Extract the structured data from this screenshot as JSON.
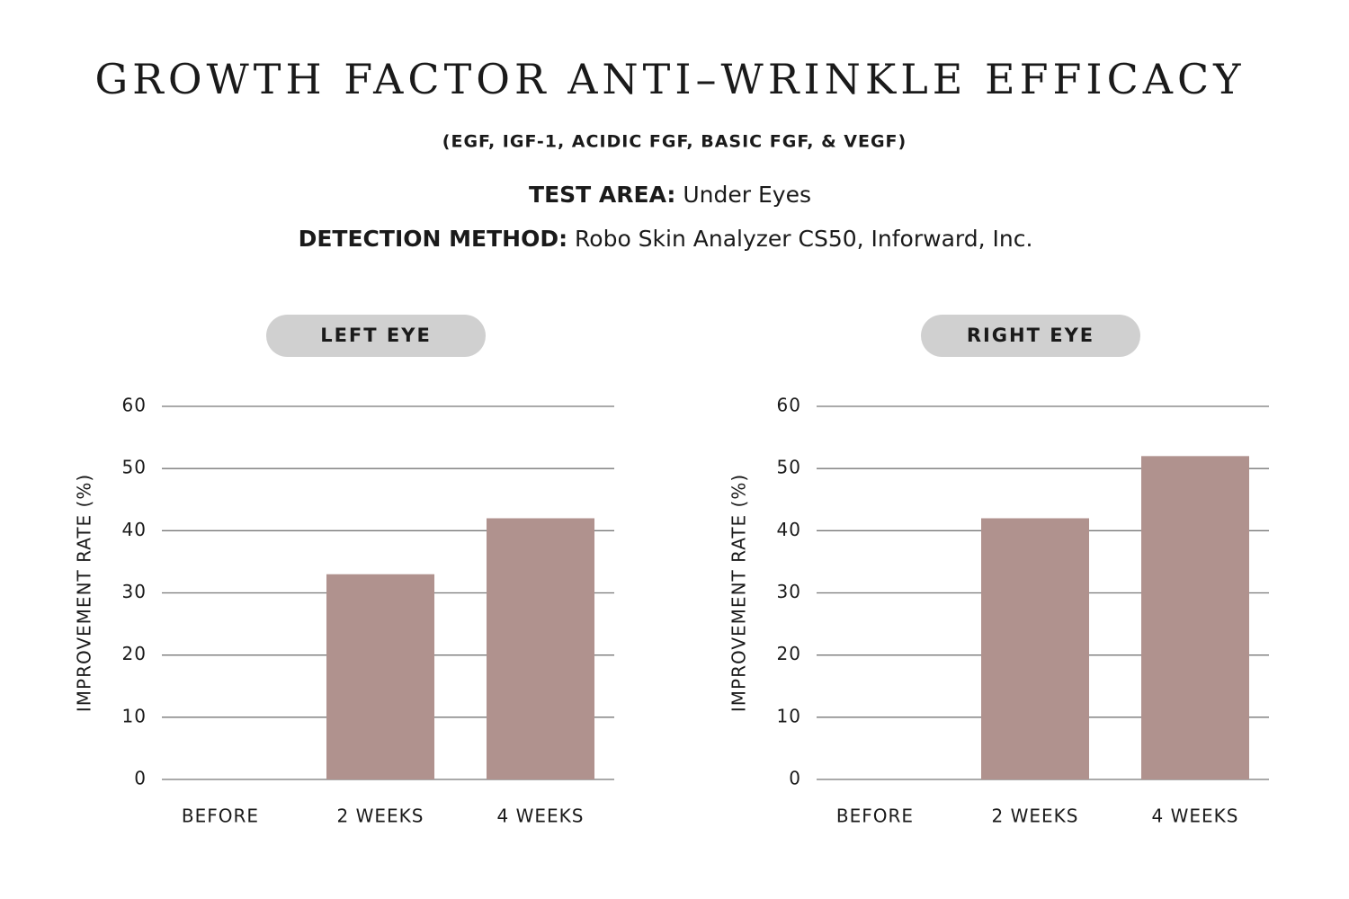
{
  "header": {
    "title": "GROWTH FACTOR ANTI–WRINKLE EFFICACY",
    "subtitle": "(EGF, IGF-1, ACIDIC FGF, BASIC FGF, & VEGF)",
    "test_area_label": "TEST AREA:",
    "test_area": "Under Eyes",
    "detection_method_label": "DETECTION METHOD:",
    "detection_method": "Robo Skin Analyzer CS50, Inforward, Inc."
  },
  "chart_data": [
    {
      "type": "bar",
      "title": "LEFT EYE",
      "ylabel": "IMPROVEMENT RATE (%)",
      "categories": [
        "BEFORE",
        "2 WEEKS",
        "4 WEEKS"
      ],
      "values": [
        0,
        33,
        42
      ],
      "color": "#b0928e",
      "ylim": [
        0,
        60
      ],
      "yticks": [
        0,
        10,
        20,
        30,
        40,
        50,
        60
      ],
      "grid": true
    },
    {
      "type": "bar",
      "title": "RIGHT EYE",
      "ylabel": "IMPROVEMENT RATE (%)",
      "categories": [
        "BEFORE",
        "2 WEEKS",
        "4 WEEKS"
      ],
      "values": [
        0,
        42,
        52
      ],
      "color": "#b0928e",
      "ylim": [
        0,
        60
      ],
      "yticks": [
        0,
        10,
        20,
        30,
        40,
        50,
        60
      ],
      "grid": true
    }
  ]
}
